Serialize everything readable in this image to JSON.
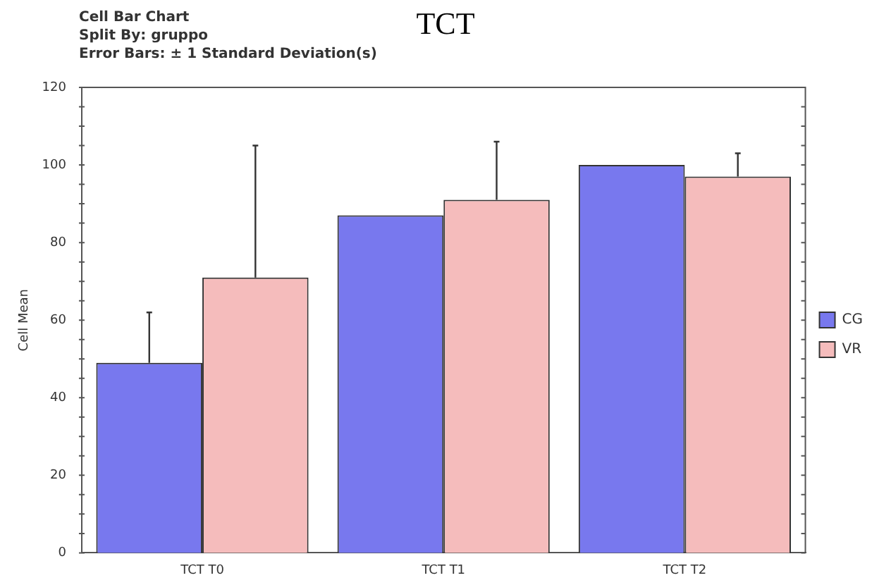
{
  "chart_data": {
    "type": "bar",
    "title": "TCT",
    "ylabel": "Cell Mean",
    "annotations": [
      "Cell Bar Chart",
      "Split By: gruppo",
      "Error Bars: ± 1 Standard Deviation(s)"
    ],
    "categories": [
      "TCT T0",
      "TCT T1",
      "TCT T2"
    ],
    "series": [
      {
        "name": "CG",
        "color": "#7878ee",
        "values": [
          49,
          87,
          100
        ],
        "errors": [
          13,
          null,
          null
        ]
      },
      {
        "name": "VR",
        "color": "#f5bcbc",
        "values": [
          71,
          91,
          97
        ],
        "errors": [
          34,
          15,
          6
        ]
      }
    ],
    "ylim": [
      0,
      120
    ],
    "yticks": [
      0,
      20,
      40,
      60,
      80,
      100,
      120
    ],
    "grid": false,
    "legend": "right"
  }
}
